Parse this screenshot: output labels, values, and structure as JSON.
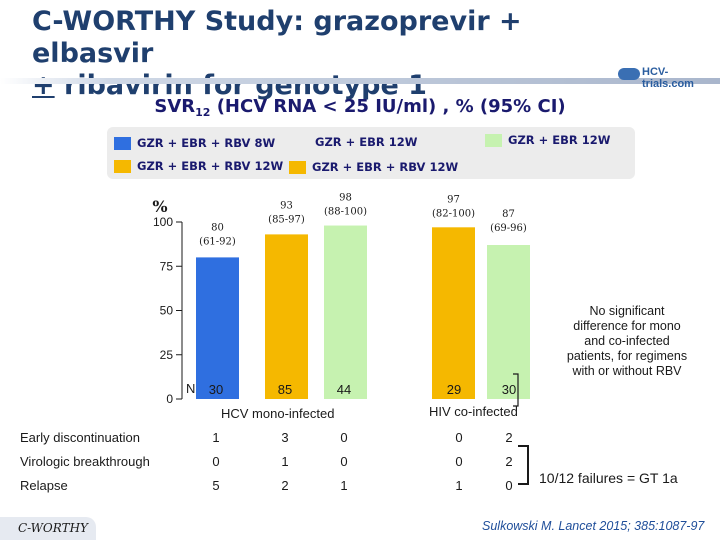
{
  "slide": {
    "title_line1": "C-WORTHY Study: grazoprevir + elbasvir",
    "title_pm": "+",
    "title_line2_rest": " ribavirin for genotype 1",
    "logo_text": "HCV-trials.com",
    "subtitle_pre": "SVR",
    "subtitle_sub": "12",
    "subtitle_post": " (HCV RNA < 25 IU/ml) , % (95% CI)",
    "group_labels": [
      "HCV mono-infected",
      "HIV co-infected"
    ],
    "n_label": "N",
    "note": "No significant difference for mono and co-infected patients, for regimens with or without RBV",
    "failures": "10/12 failures = GT 1a",
    "citation": "Sulkowski M. Lancet 2015; 385:1087-97",
    "badge": "C-WORTHY"
  },
  "legend": [
    {
      "label": "GZR + EBR + RBV 8W",
      "color": "#2f6fe0"
    },
    {
      "label": "GZR + EBR 12W",
      "color": "#c6f2b0"
    },
    {
      "label": "GZR + EBR 12W",
      "color": "#c6f2b0"
    },
    {
      "label": "GZR + EBR  + RBV 12W",
      "color": "#f5b800"
    },
    {
      "label": "GZR + EBR + RBV 12W",
      "color": "#f5b800"
    }
  ],
  "chart_data": {
    "type": "bar",
    "title": "SVR12 (HCV RNA < 25 IU/ml) , % (95% CI)",
    "ylabel": "%",
    "ylim": [
      0,
      100
    ],
    "yticks": [
      "0",
      "25",
      "50",
      "75",
      "100"
    ],
    "bars": [
      {
        "group": "HCV mono-infected",
        "regimen": "GZR + EBR + RBV 8W",
        "value": 80,
        "ci": "(61-92)",
        "n": "30",
        "color": "#2f6fe0"
      },
      {
        "group": "HCV mono-infected",
        "regimen": "GZR + EBR + RBV 12W",
        "value": 93,
        "ci": "(85-97)",
        "n": "85",
        "color": "#f5b800"
      },
      {
        "group": "HCV mono-infected",
        "regimen": "GZR + EBR 12W",
        "value": 98,
        "ci": "(88-100)",
        "n": "44",
        "color": "#c6f2b0"
      },
      {
        "group": "HIV co-infected",
        "regimen": "GZR + EBR + RBV 12W",
        "value": 97,
        "ci": "(82-100)",
        "n": "29",
        "color": "#f5b800"
      },
      {
        "group": "HIV co-infected",
        "regimen": "GZR + EBR 12W",
        "value": 87,
        "ci": "(69-96)",
        "n": "30",
        "color": "#c6f2b0"
      }
    ]
  },
  "table": {
    "rows": [
      {
        "label": "Early discontinuation",
        "values": [
          "1",
          "3",
          "0",
          "0",
          "2"
        ]
      },
      {
        "label": "Virologic breakthrough",
        "values": [
          "0",
          "1",
          "0",
          "0",
          "2"
        ]
      },
      {
        "label": "Relapse",
        "values": [
          "5",
          "2",
          "1",
          "1",
          "0"
        ]
      }
    ]
  }
}
